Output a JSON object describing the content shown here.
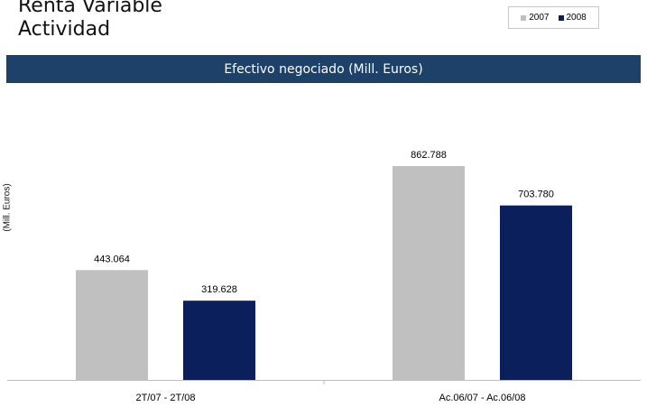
{
  "header": {
    "title_line1": "Renta Variable",
    "title_line2": "Actividad"
  },
  "banner": {
    "title": "Efectivo negociado (Mill. Euros)"
  },
  "chart_data": {
    "type": "bar",
    "title": "Efectivo negociado (Mill. Euros)",
    "xlabel": "",
    "ylabel": "(Mill. Euros)",
    "categories": [
      "2T/07 - 2T/08",
      "Ac.06/07 - Ac.06/08"
    ],
    "series": [
      {
        "name": "2007",
        "color": "#c0c0c0",
        "values": [
          443.064,
          862.788
        ],
        "labels": [
          "443.064",
          "862.788"
        ]
      },
      {
        "name": "2008",
        "color": "#0a1f5c",
        "values": [
          319.628,
          703.78
        ],
        "labels": [
          "319.628",
          "703.780"
        ]
      }
    ],
    "ylim": [
      0,
      1000
    ],
    "grid": false,
    "legend": "top-right"
  }
}
